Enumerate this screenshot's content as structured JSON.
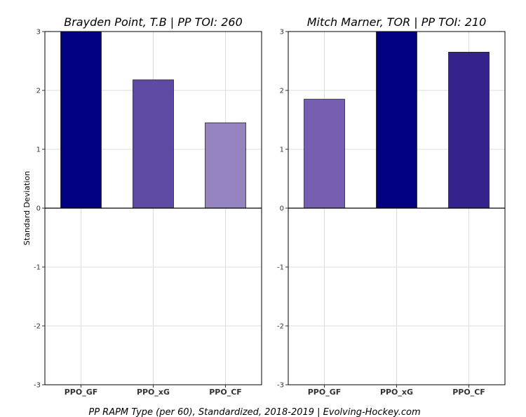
{
  "caption": "PP RAPM Type (per 60), Standardized, 2018-2019    |    Evolving-Hockey.com",
  "ylabel": "Standard Deviation",
  "chart_data": [
    {
      "type": "bar",
      "title": "Brayden Point, T.B  |  PP TOI: 260",
      "categories": [
        "PPO_GF",
        "PPO_xG",
        "PPO_CF"
      ],
      "values": [
        3.0,
        2.18,
        1.45
      ],
      "colors": [
        "#000080",
        "#5e4aa3",
        "#9683c2"
      ],
      "ylabel": "Standard Deviation",
      "ylim": [
        -3,
        3
      ],
      "yticks": [
        "-3",
        "-2",
        "-1",
        "0",
        "1",
        "2",
        "3"
      ],
      "grid": true
    },
    {
      "type": "bar",
      "title": "Mitch Marner, TOR  |  PP TOI: 210",
      "categories": [
        "PPO_GF",
        "PPO_xG",
        "PPO_CF"
      ],
      "values": [
        1.85,
        3.0,
        2.65
      ],
      "colors": [
        "#765fb1",
        "#000080",
        "#35228c"
      ],
      "ylabel": "",
      "ylim": [
        -3,
        3
      ],
      "yticks": [
        "-3",
        "-2",
        "-1",
        "0",
        "1",
        "2",
        "3"
      ],
      "grid": true
    }
  ]
}
